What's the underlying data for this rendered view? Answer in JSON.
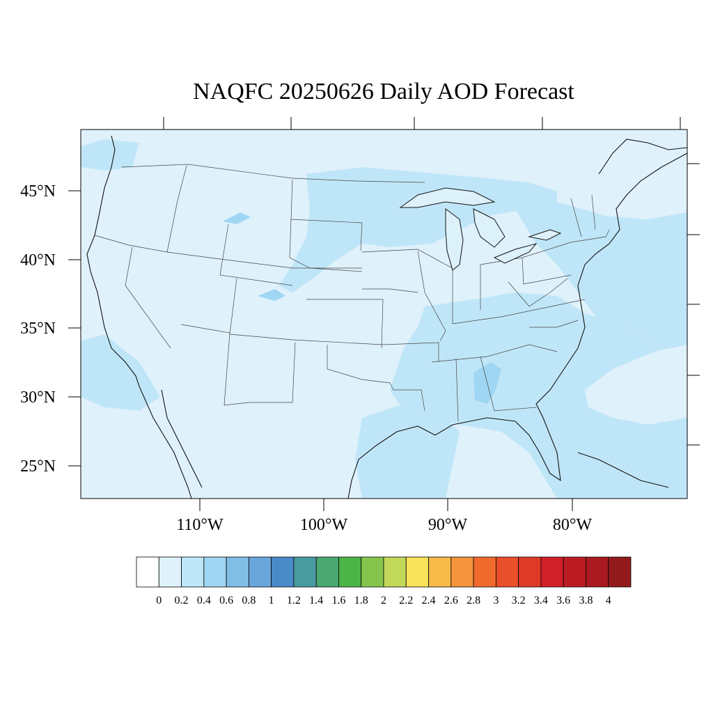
{
  "title": "NAQFC 20250626 Daily AOD Forecast",
  "lat_labels": [
    "45°N",
    "40°N",
    "35°N",
    "30°N",
    "25°N"
  ],
  "lon_labels": [
    "110°W",
    "100°W",
    "90°W",
    "80°W"
  ],
  "colorbar": {
    "colors": [
      "#ffffff",
      "#dff1fb",
      "#bfe6f8",
      "#9fd6f3",
      "#82bde6",
      "#6aa6da",
      "#4a8ac8",
      "#4a9b9f",
      "#4aa772",
      "#4bb547",
      "#86c54d",
      "#c2d85a",
      "#f8e45b",
      "#f6bb48",
      "#f4953e",
      "#f06a2e",
      "#e84f2a",
      "#de3a27",
      "#d02029",
      "#bb1c24",
      "#a91b20",
      "#931a1c"
    ],
    "labels": [
      "0",
      "0.2",
      "0.4",
      "0.6",
      "0.8",
      "1",
      "1.2",
      "1.4",
      "1.6",
      "1.8",
      "2",
      "2.2",
      "2.4",
      "2.6",
      "2.8",
      "3",
      "3.2",
      "3.4",
      "3.6",
      "3.8",
      "4"
    ]
  },
  "colors": {
    "background": "#dff1fb",
    "elevated": "#bfe6f8",
    "moderate": "#9fd6f3",
    "state_lines": "#444444"
  }
}
